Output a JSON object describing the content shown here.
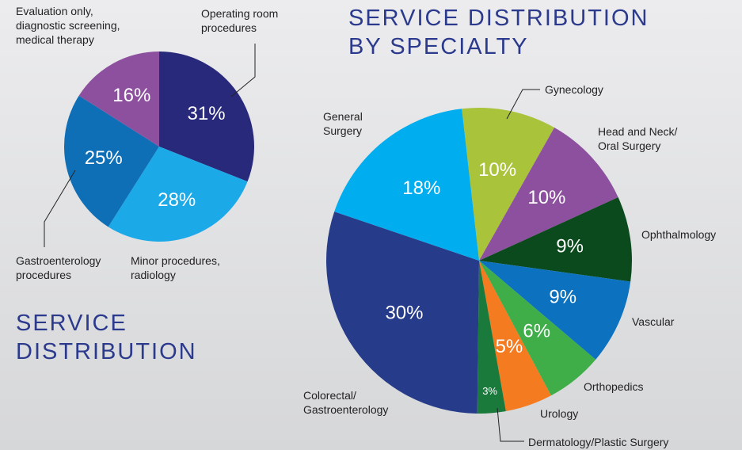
{
  "chart_data": [
    {
      "type": "pie",
      "title": "SERVICE DISTRIBUTION",
      "categories": [
        "Operating room procedures",
        "Minor procedures, radiology",
        "Gastroenterology procedures",
        "Evaluation only, diagnostic screening, medical therapy"
      ],
      "values": [
        31,
        28,
        25,
        16
      ],
      "value_labels": [
        "31%",
        "28%",
        "25%",
        "16%"
      ],
      "colors": [
        "#28297a",
        "#1ba9e8",
        "#0f6fb6",
        "#8d509f"
      ]
    },
    {
      "type": "pie",
      "title": "SERVICE DISTRIBUTION BY SPECIALTY",
      "categories": [
        "Gynecology",
        "Head and Neck/ Oral Surgery",
        "Ophthalmology",
        "Vascular",
        "Orthopedics",
        "Urology",
        "Dermatology/Plastic Surgery",
        "Colorectal/ Gastroenterology",
        "General Surgery"
      ],
      "values": [
        10,
        10,
        9,
        9,
        6,
        5,
        3,
        30,
        18
      ],
      "value_labels": [
        "10%",
        "10%",
        "9%",
        "9%",
        "6%",
        "5%",
        "3%",
        "30%",
        "18%"
      ],
      "colors": [
        "#a9c33b",
        "#8d509f",
        "#0b4a1c",
        "#0c72c0",
        "#3fae49",
        "#f47b20",
        "#1a7a3c",
        "#263b8a",
        "#00aeef"
      ]
    }
  ]
}
